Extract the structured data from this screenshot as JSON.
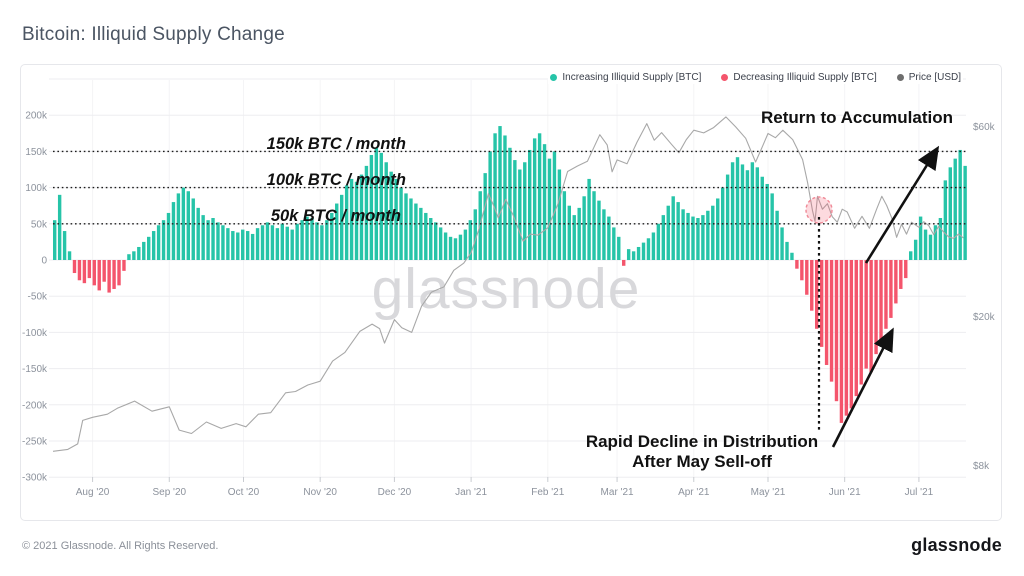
{
  "page": {
    "title": "Bitcoin: Illiquid Supply Change",
    "footer_left": "© 2021 Glassnode. All Rights Reserved.",
    "footer_logo": "glassnode",
    "watermark": "glassnode"
  },
  "legend": {
    "items": [
      {
        "label": "Increasing Illiquid Supply [BTC]",
        "color": "#26c4a8"
      },
      {
        "label": "Decreasing Illiquid Supply [BTC]",
        "color": "#f4556c"
      },
      {
        "label": "Price [USD]",
        "color": "#6e6e6e"
      }
    ]
  },
  "annotations": {
    "line_150k": "150k BTC / month",
    "line_100k": "100k BTC / month",
    "line_50k": "50k BTC / month",
    "return_accumulation": "Return to Accumulation",
    "rapid_decline_1": "Rapid Decline in Distribution",
    "rapid_decline_2": "After May Sell-off"
  },
  "chart_data": {
    "type": "bar",
    "title": "Bitcoin: Illiquid Supply Change",
    "start_date": "2020-07-16",
    "step_days": 2,
    "bar_color_positive": "#26c4a8",
    "bar_color_negative": "#f4556c",
    "price_line_color": "#a8a8a8",
    "grid_color": "#ededf0",
    "watermark_color": "#d8d8db",
    "y_left": {
      "ticks": [
        [
          "200k",
          200
        ],
        [
          "150k",
          150
        ],
        [
          "100k",
          100
        ],
        [
          "50k",
          50
        ],
        [
          "0",
          0
        ],
        [
          "-50k",
          -50
        ],
        [
          "-100k",
          -100
        ],
        [
          "-150k",
          -150
        ],
        [
          "-200k",
          -200
        ],
        [
          "-250k",
          -250
        ],
        [
          "-300k",
          -300
        ]
      ],
      "unlabeled_gridlines": [
        250
      ],
      "ylim": [
        -300,
        250
      ]
    },
    "y_right": {
      "scale": "log",
      "ticks": [
        [
          "$60k",
          60
        ],
        [
          "$20k",
          20
        ],
        [
          "$8k",
          8
        ]
      ]
    },
    "x_months": [
      [
        "Aug '20",
        16
      ],
      [
        "Sep '20",
        47
      ],
      [
        "Oct '20",
        77
      ],
      [
        "Nov '20",
        108
      ],
      [
        "Dec '20",
        138
      ],
      [
        "Jan '21",
        169
      ],
      [
        "Feb '21",
        200
      ],
      [
        "Mar '21",
        228
      ],
      [
        "Apr '21",
        259
      ],
      [
        "May '21",
        289
      ],
      [
        "Jun '21",
        320
      ],
      [
        "Jul '21",
        350
      ]
    ],
    "reference_lines_kbtc": [
      150,
      100,
      50
    ],
    "illiquid_supply_change_kbtc": [
      55,
      90,
      40,
      12,
      -18,
      -28,
      -32,
      -25,
      -35,
      -42,
      -30,
      -45,
      -40,
      -35,
      -15,
      8,
      12,
      18,
      25,
      32,
      40,
      48,
      55,
      65,
      80,
      92,
      100,
      95,
      85,
      72,
      62,
      55,
      58,
      52,
      48,
      44,
      40,
      38,
      42,
      40,
      36,
      44,
      48,
      52,
      48,
      44,
      50,
      46,
      42,
      50,
      55,
      60,
      58,
      52,
      48,
      55,
      65,
      78,
      90,
      103,
      112,
      108,
      118,
      130,
      145,
      155,
      148,
      135,
      122,
      112,
      100,
      92,
      85,
      78,
      72,
      65,
      58,
      52,
      45,
      38,
      32,
      30,
      35,
      42,
      55,
      70,
      95,
      120,
      150,
      175,
      185,
      172,
      155,
      138,
      125,
      135,
      152,
      168,
      175,
      160,
      140,
      150,
      125,
      95,
      75,
      62,
      72,
      88,
      112,
      95,
      82,
      70,
      60,
      45,
      32,
      -8,
      15,
      12,
      18,
      24,
      30,
      38,
      50,
      62,
      75,
      88,
      80,
      70,
      65,
      60,
      58,
      62,
      68,
      75,
      85,
      100,
      118,
      135,
      142,
      132,
      124,
      135,
      128,
      115,
      105,
      92,
      68,
      45,
      25,
      10,
      -12,
      -28,
      -48,
      -70,
      -95,
      -120,
      -145,
      -168,
      -195,
      -225,
      -215,
      -205,
      -188,
      -172,
      -150,
      -155,
      -130,
      -112,
      -95,
      -80,
      -60,
      -40,
      -25,
      12,
      28,
      60,
      42,
      35,
      48,
      58,
      110,
      128,
      140,
      152,
      130
    ],
    "price_usd_k": [
      [
        0,
        9.2
      ],
      [
        6,
        9.3
      ],
      [
        10,
        9.6
      ],
      [
        12,
        11.0
      ],
      [
        16,
        11.2
      ],
      [
        22,
        11.4
      ],
      [
        26,
        11.8
      ],
      [
        33,
        12.3
      ],
      [
        40,
        11.6
      ],
      [
        47,
        11.9
      ],
      [
        51,
        10.4
      ],
      [
        56,
        10.2
      ],
      [
        62,
        10.9
      ],
      [
        68,
        10.5
      ],
      [
        74,
        10.8
      ],
      [
        78,
        10.6
      ],
      [
        83,
        11.4
      ],
      [
        88,
        11.5
      ],
      [
        94,
        12.9
      ],
      [
        98,
        13.0
      ],
      [
        103,
        13.5
      ],
      [
        108,
        13.8
      ],
      [
        113,
        15.5
      ],
      [
        118,
        16.3
      ],
      [
        124,
        18.4
      ],
      [
        129,
        19.2
      ],
      [
        132,
        18.7
      ],
      [
        134,
        17.2
      ],
      [
        138,
        19.7
      ],
      [
        141,
        18.8
      ],
      [
        145,
        18.3
      ],
      [
        149,
        21.3
      ],
      [
        153,
        23.1
      ],
      [
        158,
        23.8
      ],
      [
        162,
        26.2
      ],
      [
        166,
        27.3
      ],
      [
        169,
        29.0
      ],
      [
        172,
        33.0
      ],
      [
        176,
        40.8
      ],
      [
        178,
        38.2
      ],
      [
        180,
        35.5
      ],
      [
        183,
        39.5
      ],
      [
        186,
        36.0
      ],
      [
        190,
        31.0
      ],
      [
        193,
        32.3
      ],
      [
        196,
        32.1
      ],
      [
        200,
        33.5
      ],
      [
        204,
        38.3
      ],
      [
        208,
        46.4
      ],
      [
        212,
        47.9
      ],
      [
        216,
        49.2
      ],
      [
        221,
        57.4
      ],
      [
        224,
        54.1
      ],
      [
        226,
        46.3
      ],
      [
        228,
        49.6
      ],
      [
        232,
        48.5
      ],
      [
        236,
        54.9
      ],
      [
        240,
        61.2
      ],
      [
        243,
        55.6
      ],
      [
        246,
        58.1
      ],
      [
        250,
        54.3
      ],
      [
        253,
        51.7
      ],
      [
        256,
        55.8
      ],
      [
        259,
        58.9
      ],
      [
        263,
        58.0
      ],
      [
        267,
        59.8
      ],
      [
        272,
        63.6
      ],
      [
        276,
        60.0
      ],
      [
        280,
        56.2
      ],
      [
        284,
        49.0
      ],
      [
        287,
        54.0
      ],
      [
        289,
        57.8
      ],
      [
        292,
        56.4
      ],
      [
        295,
        58.9
      ],
      [
        299,
        55.8
      ],
      [
        303,
        49.7
      ],
      [
        305,
        43.5
      ],
      [
        307,
        37.0
      ],
      [
        308,
        34.8
      ],
      [
        309,
        40.2
      ],
      [
        311,
        37.3
      ],
      [
        313,
        38.5
      ],
      [
        315,
        35.7
      ],
      [
        317,
        34.6
      ],
      [
        319,
        37.3
      ],
      [
        321,
        36.7
      ],
      [
        324,
        33.4
      ],
      [
        327,
        35.8
      ],
      [
        330,
        33.4
      ],
      [
        333,
        37.4
      ],
      [
        335,
        40.2
      ],
      [
        337,
        38.1
      ],
      [
        339,
        35.5
      ],
      [
        341,
        31.7
      ],
      [
        343,
        34.2
      ],
      [
        345,
        32.3
      ],
      [
        347,
        34.6
      ],
      [
        350,
        33.6
      ],
      [
        352,
        34.7
      ],
      [
        354,
        33.9
      ],
      [
        356,
        32.2
      ],
      [
        358,
        33.8
      ],
      [
        360,
        32.7
      ],
      [
        362,
        31.8
      ],
      [
        364,
        31.5
      ],
      [
        366,
        32.3
      ],
      [
        368,
        31.6
      ]
    ]
  }
}
